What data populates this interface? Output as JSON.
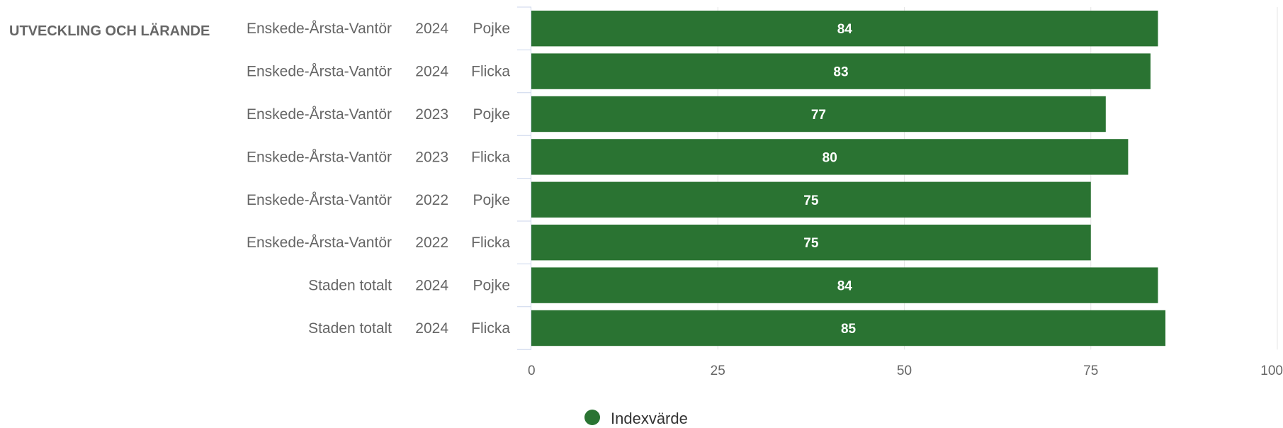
{
  "chart_data": {
    "type": "bar",
    "orientation": "horizontal",
    "group_label": "UTVECKLING OCH LÄRANDE",
    "categories": [
      {
        "area": "Enskede-Årsta-Vantör",
        "year": "2024",
        "gender": "Pojke"
      },
      {
        "area": "Enskede-Årsta-Vantör",
        "year": "2024",
        "gender": "Flicka"
      },
      {
        "area": "Enskede-Årsta-Vantör",
        "year": "2023",
        "gender": "Pojke"
      },
      {
        "area": "Enskede-Årsta-Vantör",
        "year": "2023",
        "gender": "Flicka"
      },
      {
        "area": "Enskede-Årsta-Vantör",
        "year": "2022",
        "gender": "Pojke"
      },
      {
        "area": "Enskede-Årsta-Vantör",
        "year": "2022",
        "gender": "Flicka"
      },
      {
        "area": "Staden totalt",
        "year": "2024",
        "gender": "Pojke"
      },
      {
        "area": "Staden totalt",
        "year": "2024",
        "gender": "Flicka"
      }
    ],
    "series": [
      {
        "name": "Indexvärde",
        "values": [
          84,
          83,
          77,
          80,
          75,
          75,
          84,
          85
        ],
        "color": "#2a7332"
      }
    ],
    "xlim": [
      0,
      100
    ],
    "xticks": [
      "0",
      "25",
      "50",
      "75",
      "100"
    ],
    "grid": true,
    "legend_position": "bottom-center"
  }
}
